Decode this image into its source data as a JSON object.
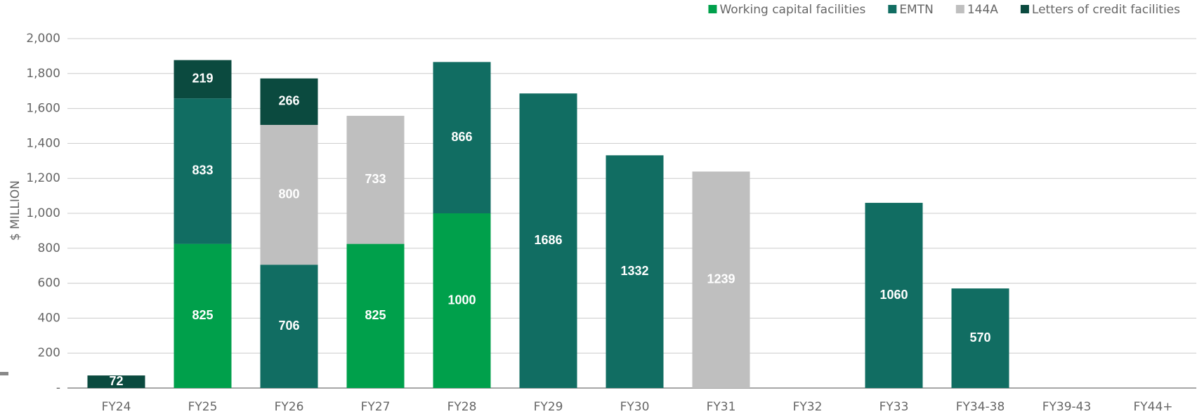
{
  "chart_data": {
    "type": "bar",
    "stacked": true,
    "ylabel": "$ MILLION",
    "categories": [
      "FY24",
      "FY25",
      "FY26",
      "FY27",
      "FY28",
      "FY29",
      "FY30",
      "FY31",
      "FY32",
      "FY33",
      "FY34-38",
      "FY39-43",
      "FY44+"
    ],
    "series": [
      {
        "name": "Working capital facilities",
        "color": "#00a04b",
        "values": [
          null,
          825,
          null,
          825,
          1000,
          null,
          null,
          null,
          null,
          null,
          null,
          null,
          null
        ]
      },
      {
        "name": "EMTN",
        "color": "#116d62",
        "values": [
          null,
          833,
          706,
          null,
          866,
          1686,
          1332,
          null,
          null,
          1060,
          570,
          null,
          null
        ]
      },
      {
        "name": "144A",
        "color": "#bfbfbf",
        "values": [
          null,
          null,
          800,
          733,
          null,
          null,
          null,
          1239,
          null,
          null,
          null,
          null,
          null
        ]
      },
      {
        "name": "Letters of credit facilities",
        "color": "#0b4a3f",
        "values": [
          72,
          219,
          266,
          null,
          null,
          null,
          null,
          null,
          null,
          null,
          null,
          null,
          null
        ]
      }
    ],
    "ylim": [
      0,
      2000
    ],
    "yticks": [
      {
        "value": 0,
        "label": "-"
      },
      {
        "value": 200,
        "label": "200"
      },
      {
        "value": 400,
        "label": "400"
      },
      {
        "value": 600,
        "label": "600"
      },
      {
        "value": 800,
        "label": "800"
      },
      {
        "value": 1000,
        "label": "1,000"
      },
      {
        "value": 1200,
        "label": "1,200"
      },
      {
        "value": 1400,
        "label": "1,400"
      },
      {
        "value": 1600,
        "label": "1,600"
      },
      {
        "value": 1800,
        "label": "1,800"
      },
      {
        "value": 2000,
        "label": "2,000"
      }
    ],
    "grid": true,
    "legend": "top-right"
  }
}
